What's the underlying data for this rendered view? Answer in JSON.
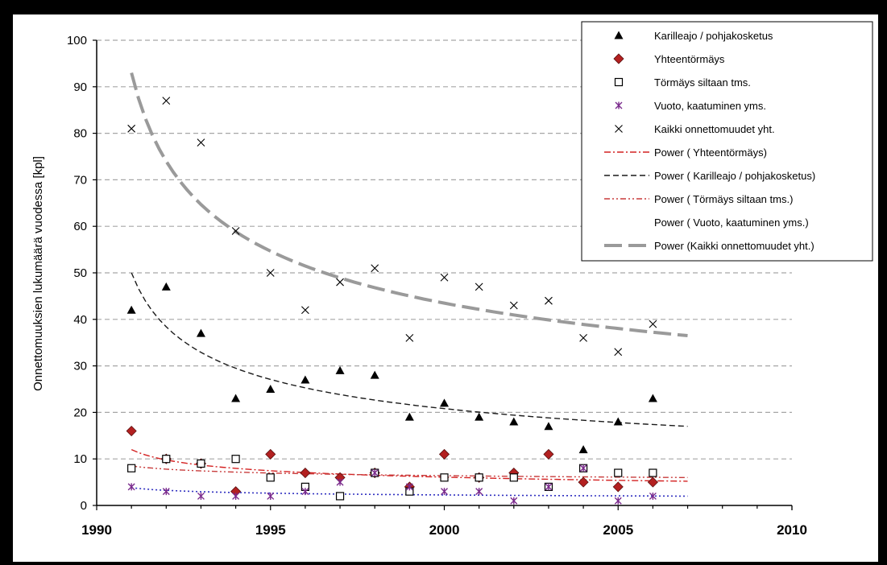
{
  "colors": {
    "frame": "#000000",
    "grid": "#a6a6a6",
    "karilleajo": "#000000",
    "yhteentormays": "#b32020",
    "tormays_siltaan": "#000000",
    "vuoto": "#7a2a8c",
    "kaikki": "#000000",
    "power_yhteentormays": "#d42020",
    "power_karilleajo": "#1a1a1a",
    "power_tormays_siltaan": "#c83c3c",
    "power_vuoto": "#3030c0",
    "power_kaikki": "#9a9a9a"
  },
  "chart_data": {
    "type": "scatter",
    "title": "",
    "ylabel": "Onnettomuuksien lukumäärä vuodessa [kpl]",
    "xlabel": "",
    "xlim": [
      1990,
      2010
    ],
    "ylim": [
      0,
      100
    ],
    "x_ticks": [
      "1990",
      "1995",
      "2000",
      "2005",
      "2010"
    ],
    "x_tick_values": [
      1990,
      1995,
      2000,
      2005,
      2010
    ],
    "y_ticks": [
      "0",
      "10",
      "20",
      "30",
      "40",
      "50",
      "60",
      "70",
      "80",
      "90",
      "100"
    ],
    "y_tick_values": [
      0,
      10,
      20,
      30,
      40,
      50,
      60,
      70,
      80,
      90,
      100
    ],
    "grid": "horizontal dashed",
    "legend_position": "top-right",
    "series": [
      {
        "name": "Karilleajo / pohjakosketus",
        "marker": "triangle",
        "x": [
          1991,
          1992,
          1993,
          1994,
          1995,
          1996,
          1997,
          1998,
          1999,
          2000,
          2001,
          2002,
          2003,
          2004,
          2005,
          2006
        ],
        "y": [
          42,
          47,
          37,
          23,
          25,
          27,
          29,
          28,
          19,
          22,
          19,
          18,
          17,
          12,
          18,
          23
        ]
      },
      {
        "name": "Yhteentörmäys",
        "marker": "diamond",
        "x": [
          1991,
          1992,
          1993,
          1994,
          1995,
          1996,
          1997,
          1998,
          1999,
          2000,
          2001,
          2002,
          2003,
          2004,
          2005,
          2006
        ],
        "y": [
          16,
          10,
          9,
          3,
          11,
          7,
          6,
          7,
          4,
          11,
          6,
          7,
          11,
          5,
          4,
          5
        ]
      },
      {
        "name": "Törmäys siltaan tms.",
        "marker": "square-open",
        "x": [
          1991,
          1992,
          1993,
          1994,
          1995,
          1996,
          1997,
          1998,
          1999,
          2000,
          2001,
          2002,
          2003,
          2004,
          2005,
          2006
        ],
        "y": [
          8,
          10,
          9,
          10,
          6,
          4,
          2,
          7,
          3,
          6,
          6,
          6,
          4,
          8,
          7,
          7
        ]
      },
      {
        "name": "Vuoto, kaatuminen yms.",
        "marker": "star",
        "x": [
          1991,
          1992,
          1993,
          1994,
          1995,
          1996,
          1997,
          1998,
          1999,
          2000,
          2001,
          2002,
          2003,
          2004,
          2005,
          2006
        ],
        "y": [
          4,
          3,
          2,
          2,
          2,
          3,
          5,
          7,
          4,
          3,
          3,
          1,
          4,
          8,
          1,
          2
        ]
      },
      {
        "name": "Kaikki onnettomuudet yht.",
        "marker": "x",
        "x": [
          1991,
          1992,
          1993,
          1994,
          1995,
          1996,
          1997,
          1998,
          1999,
          2000,
          2001,
          2002,
          2003,
          2004,
          2005,
          2006
        ],
        "y": [
          81,
          87,
          78,
          59,
          50,
          42,
          48,
          51,
          36,
          49,
          47,
          43,
          44,
          36,
          33,
          39
        ]
      }
    ],
    "trendlines": [
      {
        "name": "Power ( Yhteentörmäys)",
        "type": "power",
        "style": "dash-dot",
        "of": "Yhteentörmäys",
        "x_range": [
          1991,
          2007
        ],
        "y_start": 12,
        "y_end": 5.2
      },
      {
        "name": "Power ( Karilleajo / pohjakosketus)",
        "type": "power",
        "style": "dash",
        "of": "Karilleajo / pohjakosketus",
        "x_range": [
          1991,
          2007
        ],
        "y_start": 50,
        "y_end": 17
      },
      {
        "name": "Power ( Törmäys siltaan tms.)",
        "type": "power",
        "style": "dash-dot-dot",
        "of": "Törmäys siltaan tms.",
        "x_range": [
          1991,
          2007
        ],
        "y_start": 8.5,
        "y_end": 6
      },
      {
        "name": "Power ( Vuoto, kaatuminen yms.)",
        "type": "power",
        "style": "dot",
        "of": "Vuoto, kaatuminen yms.",
        "x_range": [
          1991,
          2007
        ],
        "y_start": 3.8,
        "y_end": 2
      },
      {
        "name": "Power (Kaikki onnettomuudet yht.)",
        "type": "power",
        "style": "long-dash",
        "of": "Kaikki onnettomuudet yht.",
        "x_range": [
          1991,
          2007
        ],
        "y_start": 93,
        "y_end": 36.5
      }
    ]
  }
}
